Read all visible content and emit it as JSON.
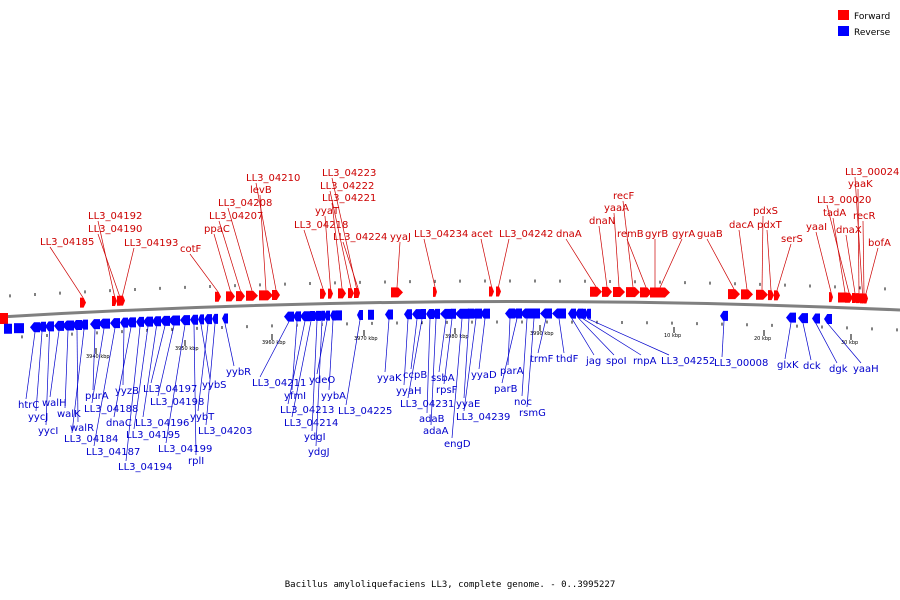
{
  "legend": {
    "forward_label": "Forward",
    "reverse_label": "Reverse",
    "forward_color": "#ff0000",
    "reverse_color": "#0000ff"
  },
  "caption": "Bacillus amyloliquefaciens LL3, complete genome. - 0..3995227",
  "backbone_color": "#808080",
  "scale_labels": [
    "3940 kbp",
    "3950 kbp",
    "3960 kbp",
    "3970 kbp",
    "3980 kbp",
    "3990 kbp",
    "10 kbp",
    "20 kbp",
    "30 kbp"
  ],
  "forward_genes": [
    "LL3_04185",
    "LL3_04192",
    "LL3_04190",
    "LL3_04193",
    "cotF",
    "ppaC",
    "LL3_04207",
    "LL3_04208",
    "levB",
    "LL3_04210",
    "LL3_04218",
    "yyaT",
    "LL3_04221",
    "LL3_04222",
    "LL3_04223",
    "LL3_04224",
    "yyaJ",
    "LL3_04234",
    "acet",
    "LL3_04242",
    "dnaA",
    "dnaN",
    "yaaA",
    "recF",
    "remB",
    "gyrB",
    "gyrA",
    "guaB",
    "dacA",
    "pdxS",
    "pdxT",
    "serS",
    "yaaI",
    "tadA",
    "LL3_00020",
    "dnaX",
    "yaaK",
    "LL3_00024",
    "recR",
    "bofA"
  ],
  "reverse_genes": [
    "htrC",
    "yycJ",
    "yycI",
    "walH",
    "walK",
    "walR",
    "LL3_04184",
    "purA",
    "LL3_04188",
    "LL3_04187",
    "yyzB",
    "dnaC",
    "LL3_04194",
    "LL3_04195",
    "LL3_04196",
    "LL3_04197",
    "LL3_04198",
    "LL3_04199",
    "rplI",
    "yybS",
    "yybT",
    "LL3_04203",
    "yybR",
    "LL3_04211",
    "yfmI",
    "LL3_04213",
    "LL3_04214",
    "ydgI",
    "ydgJ",
    "ydeO",
    "yybA",
    "LL3_04225",
    "yyaK",
    "yyaH",
    "ccpB",
    "LL3_04231",
    "adaB",
    "adaA",
    "ssbA",
    "rpsF",
    "engD",
    "yyaE",
    "LL3_04239",
    "yyaD",
    "parA",
    "parB",
    "noc",
    "rsmG",
    "trmF",
    "thdF",
    "jag",
    "spoI",
    "rnpA",
    "LL3_04252",
    "LL3_00008",
    "glxK",
    "dck",
    "dgk",
    "yaaH"
  ]
}
